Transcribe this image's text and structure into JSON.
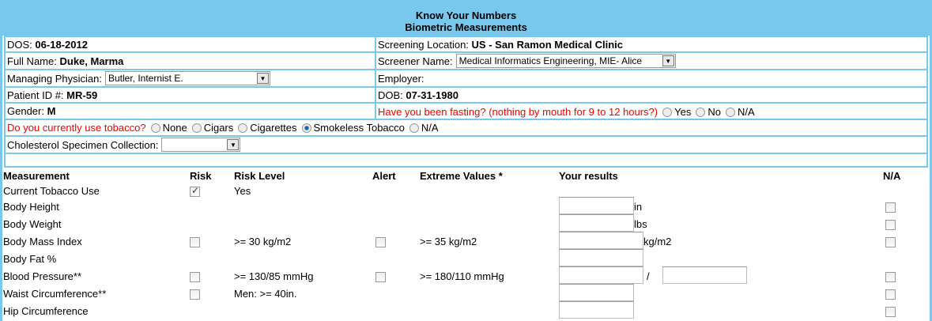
{
  "header": {
    "title": "Know Your Numbers",
    "subtitle": "Biometric Measurements"
  },
  "info": {
    "dos_label": "DOS:",
    "dos": "06-18-2012",
    "location_label": "Screening Location:",
    "location": "US - San Ramon Medical Clinic",
    "name_label": "Full Name:",
    "name": "Duke, Marma",
    "screener_label": "Screener Name:",
    "screener": "Medical Informatics Engineering, MIE- Alice",
    "physician_label": "Managing Physician:",
    "physician": "Butler, Internist E.",
    "employer_label": "Employer:",
    "patient_label": "Patient ID #:",
    "patient_id": "MR-59",
    "dob_label": "DOB:",
    "dob": "07-31-1980",
    "gender_label": "Gender:",
    "gender": "M",
    "fasting_q": "Have you been fasting? (nothing by mouth for 9 to 12 hours?)",
    "fasting_options": [
      "Yes",
      "No",
      "N/A"
    ],
    "tobacco_q": "Do you currently use tobacco?",
    "tobacco_options": [
      "None",
      "Cigars",
      "Cigarettes",
      "Smokeless Tobacco",
      "N/A"
    ],
    "tobacco_selected": "Smokeless Tobacco",
    "cholesterol_label": "Cholesterol Specimen Collection:",
    "cholesterol": ""
  },
  "table": {
    "headers": [
      "Measurement",
      "Risk",
      "Risk Level",
      "Alert",
      "Extreme Values *",
      "Your results",
      "N/A"
    ],
    "rows": [
      {
        "name": "Current Tobacco Use",
        "risk": true,
        "risk_level": "Yes"
      },
      {
        "name": "Body Height",
        "unit": "in"
      },
      {
        "name": "Body Weight",
        "unit": "lbs"
      },
      {
        "name": "Body Mass Index",
        "risk": false,
        "risk_level": ">= 30 kg/m2",
        "alert": false,
        "extreme": ">= 35 kg/m2",
        "unit": "kg/m2"
      },
      {
        "name": "Body Fat %"
      },
      {
        "name": "Blood Pressure**",
        "risk": false,
        "risk_level": ">= 130/85 mmHg",
        "alert": false,
        "extreme": ">= 180/110 mmHg",
        "sep": "/"
      },
      {
        "name": "Waist Circumference**",
        "risk": false,
        "risk_level": "Men: >= 40in."
      },
      {
        "name": "Hip Circumference"
      }
    ]
  }
}
